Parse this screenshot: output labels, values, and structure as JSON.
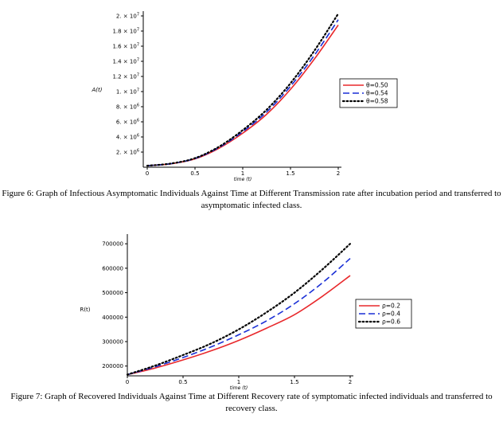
{
  "chart_data": [
    {
      "type": "line",
      "ylabel": "A(t)",
      "xlabel": "time (t)",
      "xlim": [
        0,
        2
      ],
      "ylim": [
        0,
        20000000
      ],
      "x_ticks": [
        0,
        0.5,
        1,
        1.5,
        2
      ],
      "x_tick_labels": [
        "0",
        "0.5",
        "1",
        "1.5",
        "2"
      ],
      "y_ticks": [
        2000000,
        4000000,
        6000000,
        8000000,
        10000000,
        12000000,
        14000000,
        16000000,
        18000000,
        20000000
      ],
      "y_tick_labels": [
        {
          "m": "2.",
          "e": "6"
        },
        {
          "m": "4.",
          "e": "6"
        },
        {
          "m": "6.",
          "e": "6"
        },
        {
          "m": "8.",
          "e": "6"
        },
        {
          "m": "1.",
          "e": "7"
        },
        {
          "m": "1.2",
          "e": "7"
        },
        {
          "m": "1.4",
          "e": "7"
        },
        {
          "m": "1.6",
          "e": "7"
        },
        {
          "m": "1.8",
          "e": "7"
        },
        {
          "m": "2.",
          "e": "7"
        }
      ],
      "x": [
        0,
        0.25,
        0.5,
        0.75,
        1,
        1.25,
        1.5,
        1.75,
        2
      ],
      "series": [
        {
          "name": "θ=0.50",
          "color": "#e8282b",
          "dash": "solid",
          "values": [
            200000,
            450000,
            1100000,
            2500000,
            4500000,
            7000000,
            10300000,
            14300000,
            18800000
          ]
        },
        {
          "name": "θ=0.54",
          "color": "#1a2fd6",
          "dash": "dash",
          "values": [
            200000,
            470000,
            1150000,
            2600000,
            4700000,
            7300000,
            10700000,
            14800000,
            19500000
          ]
        },
        {
          "name": "θ=0.58",
          "color": "#000000",
          "dash": "dot",
          "values": [
            200000,
            490000,
            1200000,
            2700000,
            4900000,
            7600000,
            11100000,
            15400000,
            20300000
          ]
        }
      ],
      "legend": "right",
      "caption": "Figure 6: Graph of Infectious Asymptomatic Individuals Against Time at Different Transmission rate after incubation period and transferred to asymptomatic infected class."
    },
    {
      "type": "line",
      "ylabel": "R(t)",
      "xlabel": "time (t)",
      "xlim": [
        0,
        2
      ],
      "ylim": [
        160000,
        720000
      ],
      "x_ticks": [
        0,
        0.5,
        1,
        1.5,
        2
      ],
      "x_tick_labels": [
        "0",
        "0.5",
        "1",
        "1.5",
        "2"
      ],
      "y_ticks": [
        200000,
        300000,
        400000,
        500000,
        600000,
        700000
      ],
      "y_tick_labels": [
        "200000",
        "300000",
        "400000",
        "500000",
        "600000",
        "700000"
      ],
      "x": [
        0,
        0.25,
        0.5,
        0.75,
        1,
        1.25,
        1.5,
        1.75,
        2
      ],
      "series": [
        {
          "name": "ρ=0.2",
          "color": "#e8282b",
          "dash": "solid",
          "values": [
            165000,
            192000,
            225000,
            262000,
            305000,
            355000,
            410000,
            485000,
            570000
          ]
        },
        {
          "name": "ρ=0.4",
          "color": "#1a2fd6",
          "dash": "dash",
          "values": [
            165000,
            197000,
            235000,
            278000,
            328000,
            385000,
            455000,
            540000,
            640000
          ]
        },
        {
          "name": "ρ=0.6",
          "color": "#000000",
          "dash": "dot",
          "values": [
            165000,
            202000,
            245000,
            292000,
            350000,
            420000,
            500000,
            595000,
            700000
          ]
        }
      ],
      "legend": "right",
      "caption": "Figure 7: Graph of Recovered Individuals Against Time at Different Recovery rate of symptomatic infected individuals and transferred to recovery class."
    }
  ]
}
